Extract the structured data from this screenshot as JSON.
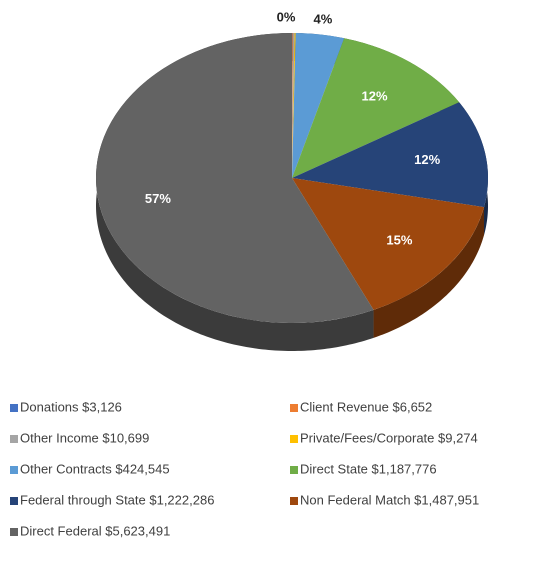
{
  "chart_data": {
    "type": "pie",
    "series": [
      {
        "name": "Donations $3,126",
        "color": "#4472c4",
        "value": 0.03,
        "value_label": "0%"
      },
      {
        "name": "Client Revenue $6,652",
        "color": "#ed7d31",
        "value": 0.07
      },
      {
        "name": "Other Income $10,699",
        "color": "#a5a5a5",
        "value": 0.11
      },
      {
        "name": "Private/Fees/Corporate $9,274",
        "color": "#ffc000",
        "value": 0.09
      },
      {
        "name": "Other Contracts $424,545",
        "color": "#5b9bd5",
        "value": 4,
        "value_label": "4%"
      },
      {
        "name": "Direct State $1,187,776",
        "color": "#70ad47",
        "value": 12,
        "value_label": "12%"
      },
      {
        "name": "Federal through State $1,222,286",
        "color": "#264478",
        "value": 12,
        "value_label": "12%"
      },
      {
        "name": "Non Federal Match $1,487,951",
        "color": "#9e480e",
        "value": 15,
        "value_label": "15%"
      },
      {
        "name": "Direct Federal $5,623,491",
        "color": "#636363",
        "value": 57,
        "value_label": "57%"
      }
    ],
    "legend": "bottom"
  }
}
